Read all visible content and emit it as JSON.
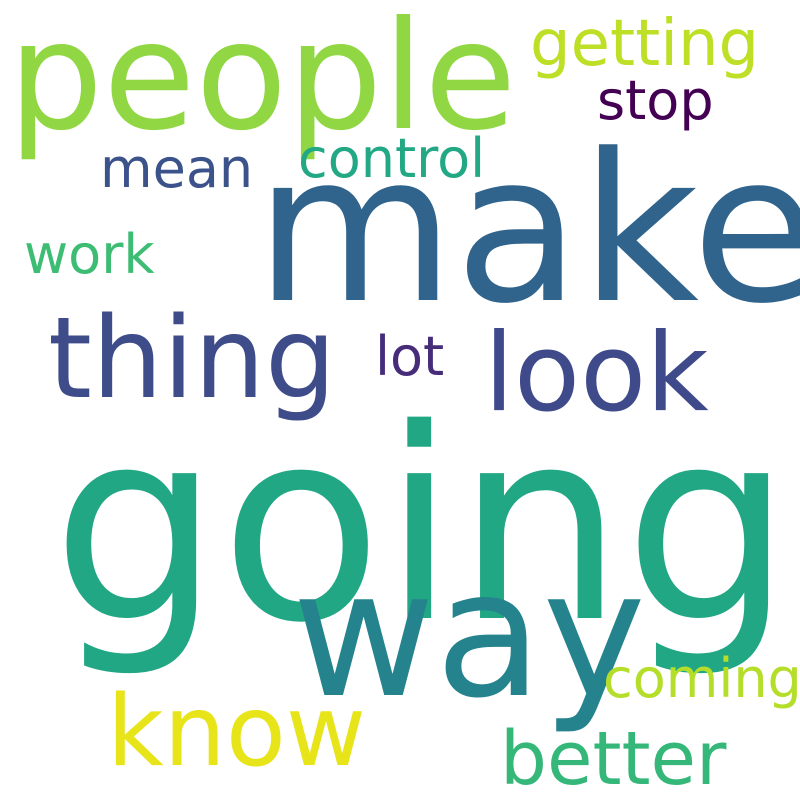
{
  "words": {
    "going": {
      "text": "going",
      "color": "#22a785"
    },
    "make": {
      "text": "make",
      "color": "#31648d"
    },
    "way": {
      "text": "way",
      "color": "#25838e"
    },
    "people": {
      "text": "people",
      "color": "#90d743"
    },
    "thing": {
      "text": "thing",
      "color": "#3e4c8a"
    },
    "look": {
      "text": "look",
      "color": "#3e4a89"
    },
    "know": {
      "text": "know",
      "color": "#e7e419"
    },
    "better": {
      "text": "better",
      "color": "#35b779"
    },
    "getting": {
      "text": "getting",
      "color": "#bddf26"
    },
    "control": {
      "text": "control",
      "color": "#22a884"
    },
    "stop": {
      "text": "stop",
      "color": "#440154"
    },
    "mean": {
      "text": "mean",
      "color": "#3b528b"
    },
    "work": {
      "text": "work",
      "color": "#3dbc74"
    },
    "coming": {
      "text": "coming",
      "color": "#b5de2b"
    },
    "lot": {
      "text": "lot",
      "color": "#472c7a"
    }
  }
}
